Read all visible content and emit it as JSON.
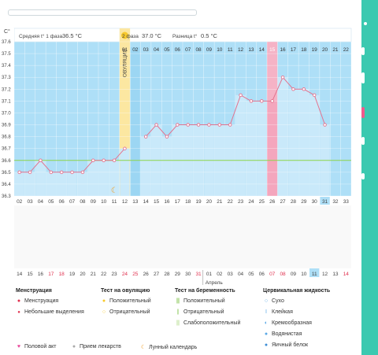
{
  "header": {
    "celsius_unit": "C°",
    "phase1_label": "Средняя t° 1 фаза",
    "phase1_value": "36.5 °C",
    "phase2_label": "2 фаза",
    "phase2_value": "37.0 °C",
    "diff_label": "Разница t°",
    "diff_value": "0.5 °C",
    "ovulation_label": "ОВУЛЯЦИЯ",
    "cycle_days": [
      "01",
      "02",
      "03",
      "04",
      "05",
      "06",
      "07",
      "08",
      "09",
      "10",
      "11",
      "12",
      "13",
      "14",
      "15",
      "16",
      "17",
      "18",
      "19",
      "20",
      "21",
      "22"
    ]
  },
  "chart_data": {
    "type": "line",
    "y_ticks": [
      "37.6",
      "37.5",
      "37.4",
      "37.3",
      "37.2",
      "37.1",
      "37.0",
      "36.9",
      "36.8",
      "36.7",
      "36.6",
      "36.5",
      "36.4",
      "36.3"
    ],
    "ylim": [
      36.3,
      37.6
    ],
    "dates": [
      "02",
      "03",
      "04",
      "05",
      "06",
      "07",
      "08",
      "09",
      "10",
      "11",
      "12",
      "13",
      "14",
      "15",
      "16",
      "17",
      "18",
      "19",
      "20",
      "21",
      "22",
      "23",
      "24",
      "25",
      "26",
      "27",
      "28",
      "29",
      "30",
      "31",
      "32",
      "33"
    ],
    "values": [
      36.5,
      36.5,
      36.6,
      36.5,
      36.5,
      36.5,
      36.5,
      36.6,
      36.6,
      36.6,
      36.7,
      null,
      36.8,
      36.9,
      36.8,
      36.9,
      36.9,
      36.9,
      36.9,
      36.9,
      36.9,
      37.15,
      37.1,
      37.1,
      37.1,
      37.3,
      37.2,
      37.2,
      37.15,
      36.9,
      null,
      null
    ],
    "coverline": 36.6,
    "ovulation_cycle_day": 1,
    "highlight_cycle_day": 15,
    "today_date": "31"
  },
  "calendar": {
    "dates": [
      "14",
      "15",
      "16",
      "17",
      "18",
      "19",
      "20",
      "21",
      "22",
      "23",
      "24",
      "25",
      "26",
      "27",
      "28",
      "29",
      "30",
      "31",
      "01",
      "02",
      "03",
      "04",
      "05",
      "06",
      "07",
      "08",
      "09",
      "10",
      "11",
      "12",
      "13",
      "14"
    ],
    "red_dates_idx": [
      3,
      4,
      10,
      11,
      17,
      24,
      25,
      31
    ],
    "month_label": "Апрель",
    "month_start_idx": 18,
    "today_idx": 28
  },
  "legend": {
    "menstruation": {
      "title": "Менструация",
      "items": [
        "Менструация",
        "Небольшие выделения"
      ]
    },
    "ovulation_test": {
      "title": "Тест на овуляцию",
      "items": [
        "Положительный",
        "Отрицательный"
      ]
    },
    "pregnancy_test": {
      "title": "Тест на беременность",
      "items": [
        "Положительный",
        "Отрицательный",
        "Слабоположительный"
      ]
    },
    "cervical_fluid": {
      "title": "Цервикальная жидкость",
      "items": [
        "Сухо",
        "Клейкая",
        "Кремообразная",
        "Водянистая",
        "Яичный белок"
      ]
    },
    "bottom": [
      "Половой акт",
      "Прием лекарств",
      "Лунный календарь"
    ]
  },
  "colors": {
    "bar": "#c9e9fa",
    "line": "#e3738f",
    "ovulation": "#fce7a1",
    "highlight": "#f4a6bd",
    "coverline": "#8bd44a",
    "right_panel": "#3bc9b0"
  }
}
